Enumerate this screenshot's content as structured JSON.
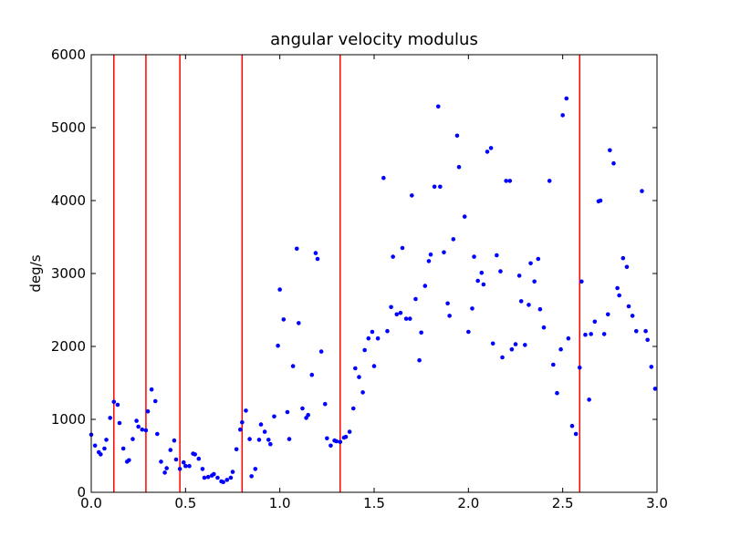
{
  "chart_data": {
    "type": "scatter",
    "title": "angular velocity modulus",
    "xlabel": "",
    "ylabel": "deg/s",
    "xlim": [
      0.0,
      3.0
    ],
    "ylim": [
      0,
      6000
    ],
    "xticks": [
      0.0,
      0.5,
      1.0,
      1.5,
      2.0,
      2.5,
      3.0
    ],
    "xtick_labels": [
      "0.0",
      "0.5",
      "1.0",
      "1.5",
      "2.0",
      "2.5",
      "3.0"
    ],
    "yticks": [
      0,
      1000,
      2000,
      3000,
      4000,
      5000,
      6000
    ],
    "ytick_labels": [
      "0",
      "1000",
      "2000",
      "3000",
      "4000",
      "5000",
      "6000"
    ],
    "grid": false,
    "point_color": "#0000ff",
    "vline_color": "#ff0000",
    "vlines": [
      0.12,
      0.29,
      0.47,
      0.8,
      1.32,
      2.59
    ],
    "points": [
      [
        0.0,
        790
      ],
      [
        0.02,
        640
      ],
      [
        0.04,
        550
      ],
      [
        0.05,
        520
      ],
      [
        0.07,
        600
      ],
      [
        0.08,
        720
      ],
      [
        0.1,
        1020
      ],
      [
        0.12,
        1240
      ],
      [
        0.14,
        1200
      ],
      [
        0.15,
        950
      ],
      [
        0.17,
        600
      ],
      [
        0.19,
        420
      ],
      [
        0.2,
        440
      ],
      [
        0.22,
        730
      ],
      [
        0.24,
        980
      ],
      [
        0.25,
        900
      ],
      [
        0.27,
        860
      ],
      [
        0.29,
        850
      ],
      [
        0.3,
        1110
      ],
      [
        0.32,
        1410
      ],
      [
        0.34,
        1250
      ],
      [
        0.35,
        800
      ],
      [
        0.37,
        420
      ],
      [
        0.39,
        270
      ],
      [
        0.4,
        330
      ],
      [
        0.42,
        580
      ],
      [
        0.44,
        710
      ],
      [
        0.45,
        450
      ],
      [
        0.47,
        320
      ],
      [
        0.49,
        410
      ],
      [
        0.5,
        360
      ],
      [
        0.52,
        360
      ],
      [
        0.54,
        530
      ],
      [
        0.55,
        520
      ],
      [
        0.57,
        460
      ],
      [
        0.59,
        320
      ],
      [
        0.6,
        200
      ],
      [
        0.62,
        210
      ],
      [
        0.64,
        230
      ],
      [
        0.65,
        250
      ],
      [
        0.67,
        200
      ],
      [
        0.69,
        150
      ],
      [
        0.7,
        140
      ],
      [
        0.72,
        170
      ],
      [
        0.74,
        200
      ],
      [
        0.75,
        280
      ],
      [
        0.77,
        590
      ],
      [
        0.79,
        860
      ],
      [
        0.8,
        960
      ],
      [
        0.82,
        1120
      ],
      [
        0.84,
        730
      ],
      [
        0.85,
        220
      ],
      [
        0.87,
        320
      ],
      [
        0.89,
        720
      ],
      [
        0.9,
        930
      ],
      [
        0.92,
        830
      ],
      [
        0.94,
        720
      ],
      [
        0.95,
        660
      ],
      [
        0.97,
        1040
      ],
      [
        0.99,
        2010
      ],
      [
        1.0,
        2780
      ],
      [
        1.02,
        2370
      ],
      [
        1.04,
        1100
      ],
      [
        1.05,
        730
      ],
      [
        1.07,
        1730
      ],
      [
        1.09,
        3340
      ],
      [
        1.1,
        2320
      ],
      [
        1.12,
        1150
      ],
      [
        1.14,
        1020
      ],
      [
        1.15,
        1060
      ],
      [
        1.17,
        1610
      ],
      [
        1.19,
        3280
      ],
      [
        1.2,
        3200
      ],
      [
        1.22,
        1930
      ],
      [
        1.24,
        1210
      ],
      [
        1.25,
        740
      ],
      [
        1.27,
        640
      ],
      [
        1.29,
        710
      ],
      [
        1.3,
        700
      ],
      [
        1.32,
        690
      ],
      [
        1.34,
        750
      ],
      [
        1.35,
        760
      ],
      [
        1.37,
        830
      ],
      [
        1.39,
        1150
      ],
      [
        1.4,
        1700
      ],
      [
        1.42,
        1580
      ],
      [
        1.44,
        1370
      ],
      [
        1.45,
        1950
      ],
      [
        1.47,
        2110
      ],
      [
        1.49,
        2200
      ],
      [
        1.5,
        1730
      ],
      [
        1.52,
        2110
      ],
      [
        1.55,
        4310
      ],
      [
        1.57,
        2210
      ],
      [
        1.59,
        2540
      ],
      [
        1.6,
        3230
      ],
      [
        1.62,
        2440
      ],
      [
        1.64,
        2460
      ],
      [
        1.65,
        3350
      ],
      [
        1.67,
        2380
      ],
      [
        1.69,
        2380
      ],
      [
        1.7,
        4070
      ],
      [
        1.72,
        2650
      ],
      [
        1.74,
        1810
      ],
      [
        1.75,
        2190
      ],
      [
        1.77,
        2830
      ],
      [
        1.79,
        3170
      ],
      [
        1.8,
        3260
      ],
      [
        1.82,
        4190
      ],
      [
        1.84,
        5290
      ],
      [
        1.85,
        4190
      ],
      [
        1.87,
        3290
      ],
      [
        1.89,
        2590
      ],
      [
        1.9,
        2420
      ],
      [
        1.92,
        3470
      ],
      [
        1.94,
        4890
      ],
      [
        1.95,
        4460
      ],
      [
        1.98,
        3780
      ],
      [
        2.0,
        2200
      ],
      [
        2.02,
        2520
      ],
      [
        2.03,
        3230
      ],
      [
        2.05,
        2900
      ],
      [
        2.07,
        3010
      ],
      [
        2.08,
        2850
      ],
      [
        2.1,
        4670
      ],
      [
        2.12,
        4720
      ],
      [
        2.13,
        2040
      ],
      [
        2.15,
        3250
      ],
      [
        2.17,
        3030
      ],
      [
        2.18,
        1850
      ],
      [
        2.2,
        4270
      ],
      [
        2.22,
        4270
      ],
      [
        2.23,
        1960
      ],
      [
        2.25,
        2030
      ],
      [
        2.27,
        2970
      ],
      [
        2.28,
        2620
      ],
      [
        2.3,
        2020
      ],
      [
        2.32,
        2570
      ],
      [
        2.33,
        3140
      ],
      [
        2.35,
        2890
      ],
      [
        2.37,
        3200
      ],
      [
        2.38,
        2510
      ],
      [
        2.4,
        2260
      ],
      [
        2.43,
        4270
      ],
      [
        2.45,
        1750
      ],
      [
        2.47,
        1360
      ],
      [
        2.49,
        1960
      ],
      [
        2.5,
        5170
      ],
      [
        2.52,
        5400
      ],
      [
        2.53,
        2110
      ],
      [
        2.55,
        910
      ],
      [
        2.57,
        800
      ],
      [
        2.59,
        1710
      ],
      [
        2.6,
        2890
      ],
      [
        2.62,
        2160
      ],
      [
        2.64,
        1270
      ],
      [
        2.65,
        2170
      ],
      [
        2.67,
        2340
      ],
      [
        2.69,
        3990
      ],
      [
        2.7,
        4000
      ],
      [
        2.72,
        2170
      ],
      [
        2.74,
        2440
      ],
      [
        2.75,
        4690
      ],
      [
        2.77,
        4510
      ],
      [
        2.79,
        2800
      ],
      [
        2.8,
        2700
      ],
      [
        2.82,
        3210
      ],
      [
        2.84,
        3090
      ],
      [
        2.85,
        2550
      ],
      [
        2.87,
        2420
      ],
      [
        2.89,
        2210
      ],
      [
        2.92,
        4130
      ],
      [
        2.94,
        2210
      ],
      [
        2.95,
        2090
      ],
      [
        2.97,
        1720
      ],
      [
        2.99,
        1420
      ]
    ]
  }
}
